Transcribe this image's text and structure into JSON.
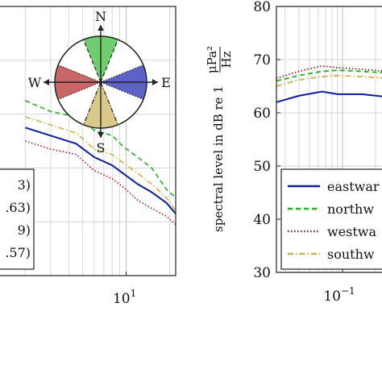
{
  "chart_data": [
    {
      "type": "line",
      "xscale": "log",
      "x_tick_labels": [
        "10"
      ],
      "x_tick_exponents": [
        "1"
      ],
      "grid": true,
      "compass": {
        "north": "N",
        "south": "S",
        "east": "E",
        "west": "W"
      },
      "legend_fragments": [
        "3)",
        ".63)",
        "9)",
        ".57)"
      ],
      "colors": {
        "eastward": "#0a1e9a",
        "northward": "#22b322",
        "westward": "#a01818",
        "southward": "#c9b24a",
        "north_sector": "#6fcf6f",
        "east_sector": "#5d62c6",
        "west_sector": "#c96666",
        "south_sector": "#d9c98a"
      },
      "series": [
        {
          "key": "northward",
          "style": "dashed",
          "points": [
            [
              2.0,
              62.5
            ],
            [
              3.0,
              60.5
            ],
            [
              4.5,
              59.5
            ],
            [
              6.0,
              57.0
            ],
            [
              8.0,
              56.0
            ],
            [
              9.5,
              54.0
            ],
            [
              12.0,
              52.0
            ],
            [
              15.0,
              50.0
            ],
            [
              19.0,
              46.0
            ],
            [
              22.0,
              44.5
            ]
          ]
        },
        {
          "key": "southward",
          "style": "dash-dot",
          "points": [
            [
              2.0,
              59.5
            ],
            [
              3.0,
              58.0
            ],
            [
              4.5,
              56.5
            ],
            [
              6.0,
              53.5
            ],
            [
              8.0,
              52.5
            ],
            [
              9.5,
              51.0
            ],
            [
              12.0,
              49.0
            ],
            [
              15.0,
              47.0
            ],
            [
              19.0,
              44.5
            ],
            [
              22.0,
              42.0
            ]
          ]
        },
        {
          "key": "eastward",
          "style": "solid",
          "points": [
            [
              2.0,
              57.5
            ],
            [
              3.0,
              56.0
            ],
            [
              4.5,
              54.5
            ],
            [
              6.0,
              52.0
            ],
            [
              8.0,
              50.5
            ],
            [
              9.5,
              49.0
            ],
            [
              12.0,
              47.0
            ],
            [
              15.0,
              45.5
            ],
            [
              19.0,
              43.5
            ],
            [
              22.0,
              41.5
            ]
          ]
        },
        {
          "key": "westward",
          "style": "dotted",
          "points": [
            [
              2.0,
              55.0
            ],
            [
              3.0,
              53.5
            ],
            [
              4.5,
              52.5
            ],
            [
              6.0,
              49.5
            ],
            [
              8.0,
              48.0
            ],
            [
              9.5,
              46.5
            ],
            [
              12.0,
              44.0
            ],
            [
              15.0,
              42.5
            ],
            [
              19.0,
              41.0
            ],
            [
              22.0,
              39.5
            ]
          ]
        }
      ]
    },
    {
      "type": "line",
      "xscale": "log",
      "ylabel_main": "spectral level in dB re 1",
      "ylabel_unit_numerator": "μPa²",
      "ylabel_unit_denominator": "Hz",
      "ylim": [
        30,
        80
      ],
      "y_ticks": [
        30,
        40,
        50,
        60,
        70,
        80
      ],
      "x_tick_labels": [
        "10"
      ],
      "x_tick_exponents": [
        "−1"
      ],
      "grid": true,
      "legend_placement": "bottom-right",
      "legend_entries": [
        "eastwar",
        "northw",
        "westwa",
        "southw"
      ],
      "series": [
        {
          "name": "eastward",
          "style": "solid",
          "color": "#0a1e9a",
          "points": [
            [
              0.025,
              62.0
            ],
            [
              0.04,
              63.2
            ],
            [
              0.065,
              64.0
            ],
            [
              0.09,
              63.5
            ],
            [
              0.15,
              63.5
            ],
            [
              0.25,
              63.0
            ]
          ]
        },
        {
          "name": "northward",
          "style": "dashed",
          "color": "#22b322",
          "points": [
            [
              0.025,
              66.0
            ],
            [
              0.04,
              67.0
            ],
            [
              0.065,
              67.8
            ],
            [
              0.09,
              68.0
            ],
            [
              0.15,
              67.8
            ],
            [
              0.25,
              67.5
            ]
          ]
        },
        {
          "name": "westward",
          "style": "dotted",
          "color": "#a01818",
          "points": [
            [
              0.025,
              66.5
            ],
            [
              0.04,
              67.8
            ],
            [
              0.065,
              68.8
            ],
            [
              0.09,
              68.5
            ],
            [
              0.15,
              68.2
            ],
            [
              0.25,
              67.8
            ]
          ]
        },
        {
          "name": "southward",
          "style": "dash-dot",
          "color": "#c9b24a",
          "points": [
            [
              0.025,
              65.0
            ],
            [
              0.04,
              66.2
            ],
            [
              0.065,
              66.8
            ],
            [
              0.09,
              67.0
            ],
            [
              0.15,
              66.8
            ],
            [
              0.25,
              66.5
            ]
          ]
        }
      ]
    }
  ]
}
